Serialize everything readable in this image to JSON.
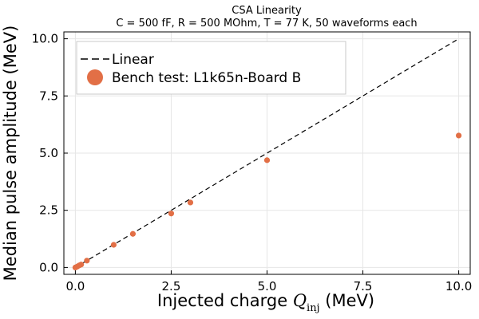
{
  "chart_data": {
    "type": "scatter",
    "title": "CSA Linearity",
    "subtitle": "C = 500 fF, R = 500 MOhm, T = 77 K,  50 waveforms  each",
    "xlabel": {
      "prefix": "Injected charge ",
      "math_symbol": "Q",
      "math_subscript": "inj",
      "suffix": " (MeV)"
    },
    "ylabel": "Median pulse amplitude (MeV)",
    "xlim": [
      -0.3,
      10.3
    ],
    "ylim": [
      -0.3,
      10.3
    ],
    "xticks": [
      0.0,
      2.5,
      5.0,
      7.5,
      10.0
    ],
    "xtick_labels": [
      "0.0",
      "2.5",
      "5.0",
      "7.5",
      "10.0"
    ],
    "yticks": [
      0.0,
      2.5,
      5.0,
      7.5,
      10.0
    ],
    "ytick_labels": [
      "0.0",
      "2.5",
      "5.0",
      "7.5",
      "10.0"
    ],
    "grid": true,
    "legend_position": "top-left",
    "series": [
      {
        "name": "Linear",
        "kind": "line",
        "style": "dashed",
        "color": "#000000",
        "x": [
          0,
          10
        ],
        "y": [
          0,
          10
        ]
      },
      {
        "name": "Bench test: L1k65n-Board B",
        "kind": "scatter",
        "color": "#e26f46",
        "x": [
          0.0,
          0.05,
          0.1,
          0.15,
          0.3,
          1.0,
          1.5,
          2.5,
          3.0,
          5.0,
          10.0
        ],
        "y": [
          0.0,
          0.04,
          0.09,
          0.13,
          0.3,
          0.99,
          1.47,
          2.36,
          2.84,
          4.69,
          5.77
        ]
      }
    ]
  }
}
